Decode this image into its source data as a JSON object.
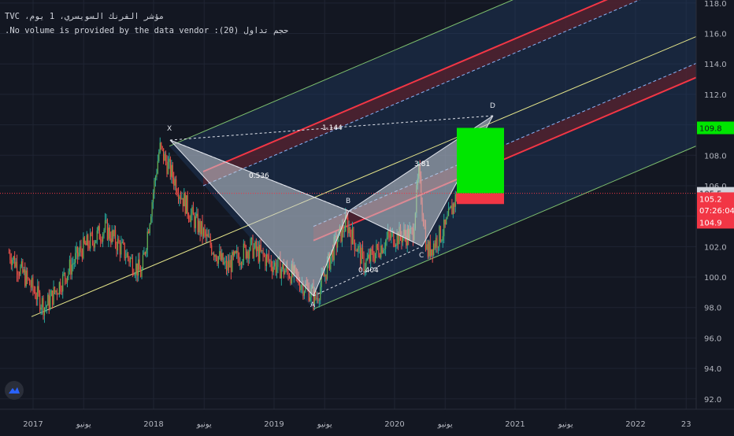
{
  "header": {
    "symbol_line": "مؤشر الفرنك السويسري، 1 يوم، TVC",
    "volume_line": "حجم تداول (20): No volume is provided by the data vendor."
  },
  "price_axis": {
    "ticks": [
      "118.0",
      "116.0",
      "114.0",
      "112.0",
      "110.0",
      "108.0",
      "106.0",
      "104.0",
      "102.0",
      "100.0",
      "98.0",
      "96.0",
      "94.0",
      "92.0"
    ],
    "tick_values": [
      118,
      116,
      114,
      112,
      110,
      108,
      106,
      104,
      102,
      100,
      98,
      96,
      94,
      92
    ],
    "range": [
      90.8,
      118.2
    ],
    "badges": [
      {
        "label": "109.8",
        "value": 109.8,
        "bg": "#00e600",
        "fg": "#131722"
      },
      {
        "label": "105.5",
        "value": 105.5,
        "bg": "#d1d4dc",
        "fg": "#131722"
      },
      {
        "label": "105.2",
        "value": 105.15,
        "bg": "#f23645",
        "fg": "#ffffff"
      },
      {
        "label": "07:26:04",
        "value": 104.4,
        "bg": "#f23645",
        "fg": "#ffffff"
      },
      {
        "label": "104.9",
        "value": 103.6,
        "bg": "#f23645",
        "fg": "#ffffff"
      }
    ]
  },
  "time_axis": {
    "labels": [
      "2017",
      "يونيو",
      "2018",
      "يونيو",
      "2019",
      "يونيو",
      "2020",
      "يونيو",
      "2021",
      "يونيو",
      "2022",
      "23"
    ]
  },
  "harmonic_pattern": {
    "points": [
      {
        "label": "X",
        "date": "2018.05",
        "price": 108.6
      },
      {
        "label": "A",
        "date": "2019.35",
        "price": 97.9
      },
      {
        "label": "B",
        "date": "2019.60",
        "price": 103.8
      },
      {
        "label": "C",
        "date": "2020.27",
        "price": 101.4
      },
      {
        "label": "D",
        "date": "2020.80",
        "price": 109.8
      }
    ],
    "ratios": [
      {
        "label": "0.536"
      },
      {
        "label": "1.144"
      },
      {
        "label": "0.404"
      },
      {
        "label": "3.81"
      }
    ]
  },
  "position_box": {
    "target_price": 109.8,
    "entry_price": 105.5,
    "stop_price": 104.9,
    "profit_color": "#00e600",
    "loss_color": "#f23645"
  },
  "current_price": 105.5,
  "colors": {
    "background": "#131722",
    "grid": "#1f2433",
    "channel_fill": "#1e3a5f",
    "channel_border": "#7dbf6e",
    "median_line": "#e6e68a",
    "red_line": "#f23645",
    "pattern_fill": "#c8cdd6",
    "candle_up": "#26a69a",
    "candle_down": "#ef5350"
  }
}
